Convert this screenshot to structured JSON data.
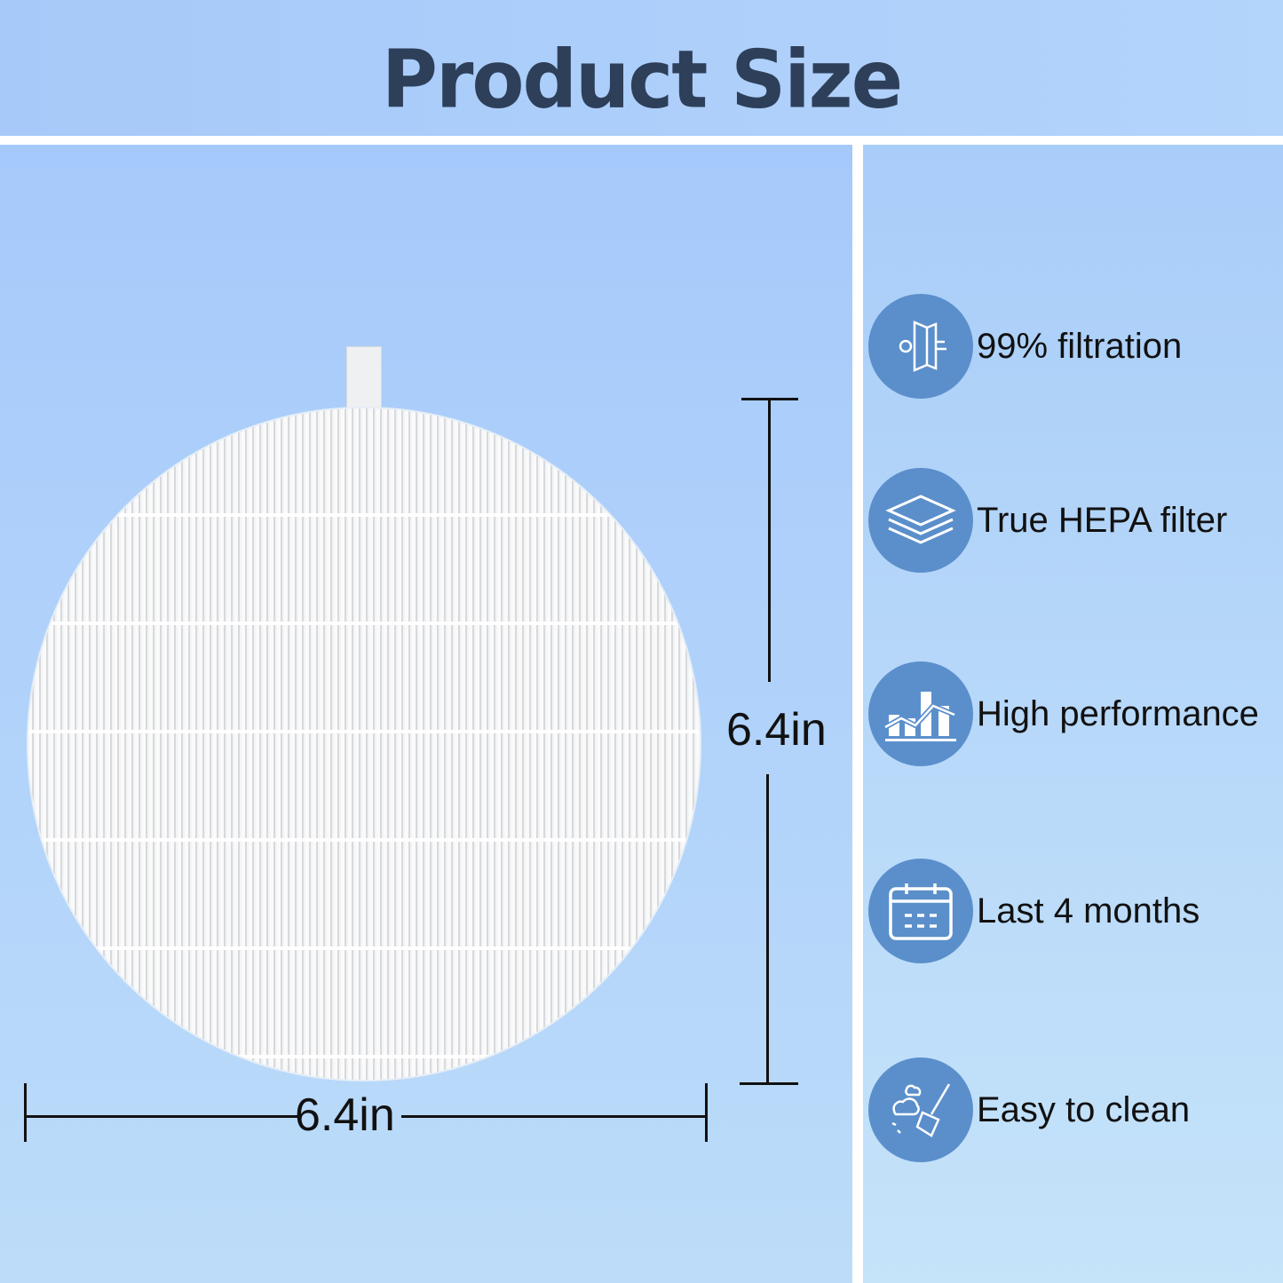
{
  "title": "Product Size",
  "dimensions": {
    "height": "6.4in",
    "width": "6.4in"
  },
  "features": [
    {
      "label": "99% filtration",
      "icon": "filtration-icon"
    },
    {
      "label": "True HEPA filter",
      "icon": "layers-icon"
    },
    {
      "label": "High performance",
      "icon": "chart-icon"
    },
    {
      "label": "Last 4 months",
      "icon": "calendar-icon"
    },
    {
      "label": "Easy to clean",
      "icon": "broom-icon"
    }
  ],
  "colors": {
    "title": "#2e3f5a",
    "icon_circle": "#5b8fcb",
    "background": "#a6c9fb"
  }
}
